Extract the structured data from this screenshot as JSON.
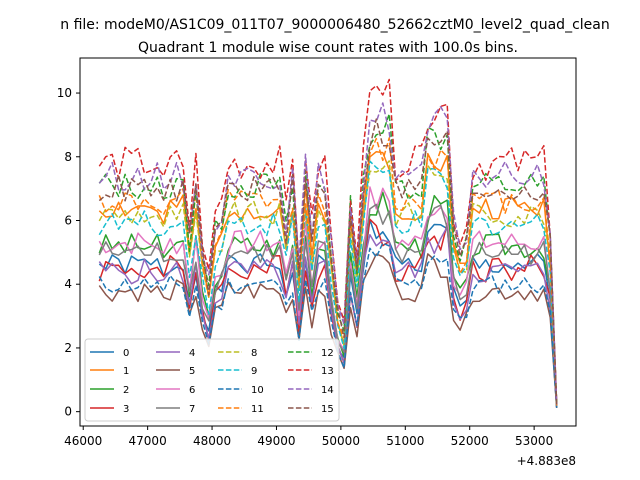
{
  "chart_data": {
    "type": "line",
    "suptitle": "n file: modeM0/AS1C09_011T07_9000006480_52662cztM0_level2_quad_clean",
    "title": "Quadrant 1 module wise count rates with 100.0s bins.",
    "xlabel": "",
    "ylabel": "",
    "x_offset_label": "+4.883e8",
    "xlim": [
      45950,
      53650
    ],
    "ylim": [
      -0.45,
      11.1
    ],
    "xticks": [
      46000,
      47000,
      48000,
      49000,
      50000,
      51000,
      52000,
      53000
    ],
    "xtick_labels": [
      "46000",
      "47000",
      "48000",
      "49000",
      "50000",
      "51000",
      "52000",
      "53000"
    ],
    "yticks": [
      0,
      2,
      4,
      6,
      8,
      10
    ],
    "ytick_labels": [
      "0",
      "2",
      "4",
      "6",
      "8",
      "10"
    ],
    "grid": false,
    "legend_position": "lower-left",
    "legend_columns": 4,
    "x": {
      "start": 46250,
      "step": 100,
      "count": 72
    },
    "series": [
      {
        "name": "0",
        "color": "#1f77b4",
        "dash": "solid",
        "level": 4.6,
        "amp": 0.35,
        "seed": 1
      },
      {
        "name": "1",
        "color": "#ff7f0e",
        "dash": "solid",
        "level": 6.4,
        "amp": 0.4,
        "seed": 2
      },
      {
        "name": "2",
        "color": "#2ca02c",
        "dash": "solid",
        "level": 5.2,
        "amp": 0.4,
        "seed": 3
      },
      {
        "name": "3",
        "color": "#d62728",
        "dash": "solid",
        "level": 4.5,
        "amp": 0.45,
        "seed": 4
      },
      {
        "name": "4",
        "color": "#9467bd",
        "dash": "solid",
        "level": 4.4,
        "amp": 0.4,
        "seed": 5
      },
      {
        "name": "5",
        "color": "#8c564b",
        "dash": "solid",
        "level": 3.8,
        "amp": 0.35,
        "seed": 6
      },
      {
        "name": "6",
        "color": "#e377c2",
        "dash": "solid",
        "level": 5.3,
        "amp": 0.4,
        "seed": 7
      },
      {
        "name": "7",
        "color": "#7f7f7f",
        "dash": "solid",
        "level": 5.0,
        "amp": 0.4,
        "seed": 8
      },
      {
        "name": "8",
        "color": "#bcbd22",
        "dash": "dashed",
        "level": 6.2,
        "amp": 0.4,
        "seed": 9
      },
      {
        "name": "9",
        "color": "#17becf",
        "dash": "dashed",
        "level": 5.9,
        "amp": 0.4,
        "seed": 10
      },
      {
        "name": "10",
        "color": "#1f77b4",
        "dash": "dashed",
        "level": 4.0,
        "amp": 0.3,
        "seed": 11
      },
      {
        "name": "11",
        "color": "#ff7f0e",
        "dash": "dashed",
        "level": 6.6,
        "amp": 0.4,
        "seed": 12
      },
      {
        "name": "12",
        "color": "#2ca02c",
        "dash": "dashed",
        "level": 7.1,
        "amp": 0.45,
        "seed": 13
      },
      {
        "name": "13",
        "color": "#d62728",
        "dash": "dashed",
        "level": 7.8,
        "amp": 0.55,
        "seed": 14
      },
      {
        "name": "14",
        "color": "#9467bd",
        "dash": "dashed",
        "level": 7.4,
        "amp": 0.45,
        "seed": 15
      },
      {
        "name": "15",
        "color": "#8c564b",
        "dash": "dashed",
        "level": 7.0,
        "amp": 0.45,
        "seed": 16
      }
    ],
    "events": [
      {
        "x": 47250,
        "factor": 0.9
      },
      {
        "x": 47650,
        "factor": 0.75
      },
      {
        "x": 47850,
        "factor": 0.7
      },
      {
        "x": 47950,
        "factor": 0.55
      },
      {
        "x": 48050,
        "factor": 0.8
      },
      {
        "x": 48150,
        "factor": 0.85
      },
      {
        "x": 49150,
        "factor": 0.8
      },
      {
        "x": 49350,
        "factor": 0.6
      },
      {
        "x": 49450,
        "factor": 1.05
      },
      {
        "x": 49550,
        "factor": 0.75
      },
      {
        "x": 49850,
        "factor": 0.7
      },
      {
        "x": 49950,
        "factor": 0.45
      },
      {
        "x": 50050,
        "factor": 0.35
      },
      {
        "x": 50150,
        "factor": 0.9
      },
      {
        "x": 50250,
        "factor": 0.65
      },
      {
        "x": 51750,
        "factor": 0.8
      },
      {
        "x": 51850,
        "factor": 0.7
      },
      {
        "x": 51950,
        "factor": 0.75
      },
      {
        "x": 53250,
        "factor": 0.75
      },
      {
        "x": 53350,
        "factor": 0.03
      }
    ],
    "bumps": [
      {
        "from": 50450,
        "to": 50750,
        "factor": 1.25
      },
      {
        "from": 51350,
        "to": 51650,
        "factor": 1.22
      }
    ]
  }
}
